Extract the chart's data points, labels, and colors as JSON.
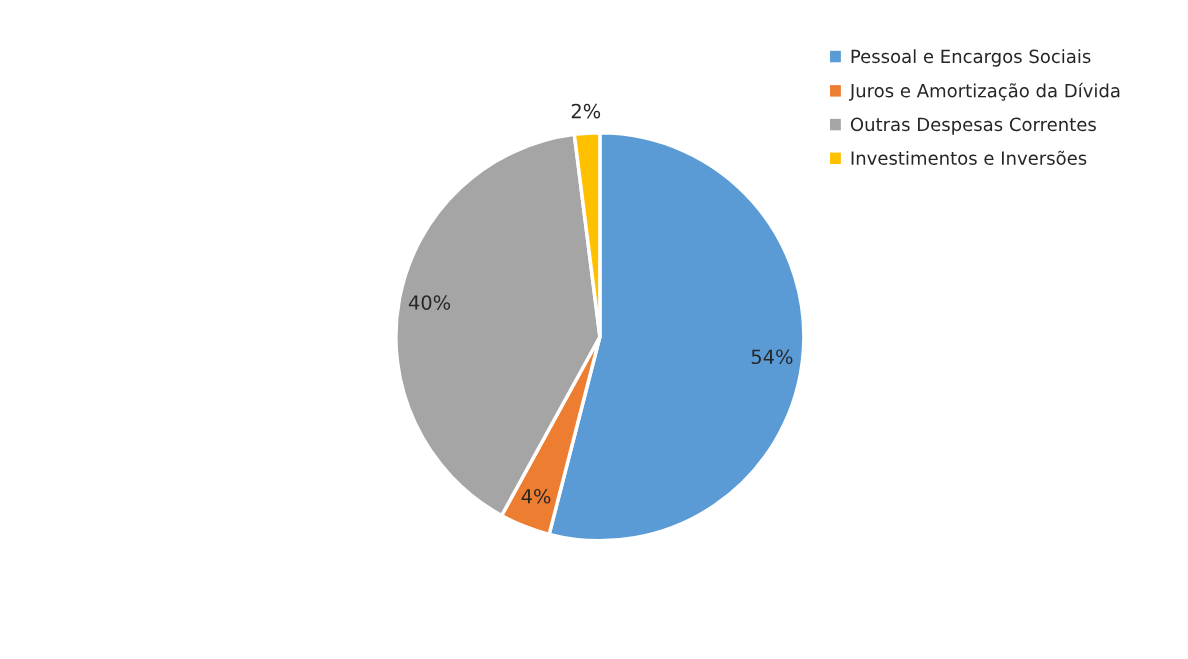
{
  "chart_data": {
    "type": "pie",
    "categories": [
      "Pessoal e Encargos Sociais",
      "Juros e Amortização da Dívida",
      "Outras Despesas Correntes",
      "Investimentos e Inversões"
    ],
    "values": [
      54,
      4,
      40,
      2
    ],
    "colors": [
      "#5b9bd5",
      "#ed7d31",
      "#a5a5a5",
      "#ffc000"
    ],
    "value_labels": [
      "54%",
      "4%",
      "40%",
      "2%"
    ],
    "legend": "top right"
  }
}
